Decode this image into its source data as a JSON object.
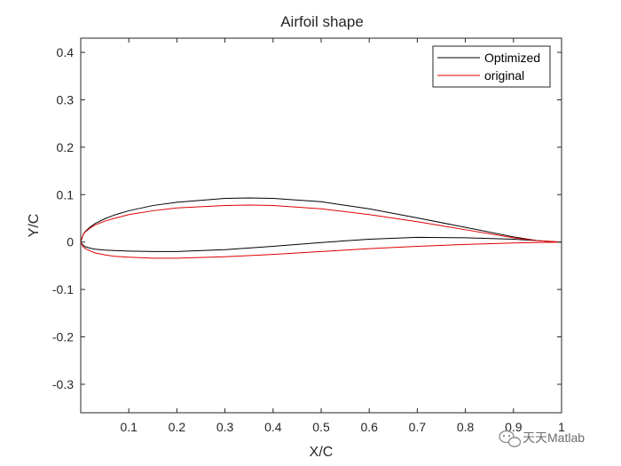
{
  "chart_data": {
    "type": "line",
    "title": "Airfoil shape",
    "xlabel": "X/C",
    "ylabel": "Y/C",
    "xlim": [
      0,
      1
    ],
    "ylim": [
      -0.36,
      0.43
    ],
    "grid": false,
    "legend_position": "top-right",
    "x_ticks": [
      {
        "value": 0.1,
        "label": "0.1"
      },
      {
        "value": 0.2,
        "label": "0.2"
      },
      {
        "value": 0.3,
        "label": "0.3"
      },
      {
        "value": 0.4,
        "label": "0.4"
      },
      {
        "value": 0.5,
        "label": "0.5"
      },
      {
        "value": 0.6,
        "label": "0.6"
      },
      {
        "value": 0.7,
        "label": "0.7"
      },
      {
        "value": 0.8,
        "label": "0.8"
      },
      {
        "value": 0.9,
        "label": "0.9"
      },
      {
        "value": 1,
        "label": "1"
      }
    ],
    "y_ticks": [
      {
        "value": 0.4,
        "label": "0.4"
      },
      {
        "value": 0.3,
        "label": "0.3"
      },
      {
        "value": 0.2,
        "label": "0.2"
      },
      {
        "value": 0.1,
        "label": "0.1"
      },
      {
        "value": 0,
        "label": "0"
      },
      {
        "value": -0.1,
        "label": "-0.1"
      },
      {
        "value": -0.2,
        "label": "-0.2"
      },
      {
        "value": -0.3,
        "label": "-0.3"
      }
    ],
    "series": [
      {
        "name": "Optimized",
        "color": "#000000",
        "x": [
          1.0,
          0.95,
          0.9,
          0.8,
          0.7,
          0.6,
          0.5,
          0.4,
          0.35,
          0.3,
          0.2,
          0.15,
          0.1,
          0.07,
          0.05,
          0.03,
          0.02,
          0.01,
          0.005,
          0.0,
          0.005,
          0.01,
          0.02,
          0.03,
          0.05,
          0.07,
          0.1,
          0.15,
          0.2,
          0.3,
          0.4,
          0.5,
          0.6,
          0.7,
          0.8,
          0.9,
          0.95,
          1.0
        ],
        "y": [
          0.0,
          0.003,
          0.011,
          0.031,
          0.051,
          0.07,
          0.085,
          0.092,
          0.093,
          0.092,
          0.084,
          0.077,
          0.066,
          0.057,
          0.049,
          0.039,
          0.032,
          0.023,
          0.016,
          0.0,
          -0.007,
          -0.01,
          -0.013,
          -0.015,
          -0.017,
          -0.018,
          -0.019,
          -0.02,
          -0.02,
          -0.016,
          -0.009,
          -0.001,
          0.006,
          0.01,
          0.009,
          0.006,
          0.003,
          0.0
        ]
      },
      {
        "name": "original",
        "color": "#e00000",
        "x": [
          1.0,
          0.95,
          0.9,
          0.8,
          0.7,
          0.6,
          0.5,
          0.4,
          0.35,
          0.3,
          0.2,
          0.15,
          0.1,
          0.07,
          0.05,
          0.03,
          0.02,
          0.01,
          0.005,
          0.0,
          0.005,
          0.01,
          0.02,
          0.03,
          0.05,
          0.07,
          0.1,
          0.15,
          0.2,
          0.3,
          0.4,
          0.5,
          0.6,
          0.7,
          0.8,
          0.9,
          0.95,
          1.0
        ],
        "y": [
          0.0,
          0.003,
          0.009,
          0.026,
          0.043,
          0.058,
          0.07,
          0.077,
          0.078,
          0.077,
          0.072,
          0.066,
          0.058,
          0.05,
          0.044,
          0.036,
          0.03,
          0.022,
          0.016,
          0.0,
          -0.01,
          -0.014,
          -0.019,
          -0.023,
          -0.027,
          -0.03,
          -0.032,
          -0.034,
          -0.034,
          -0.031,
          -0.026,
          -0.02,
          -0.014,
          -0.009,
          -0.005,
          -0.002,
          -0.001,
          0.0
        ]
      }
    ]
  },
  "watermark": {
    "text": "天天Matlab",
    "icon": "wechat-icon"
  }
}
